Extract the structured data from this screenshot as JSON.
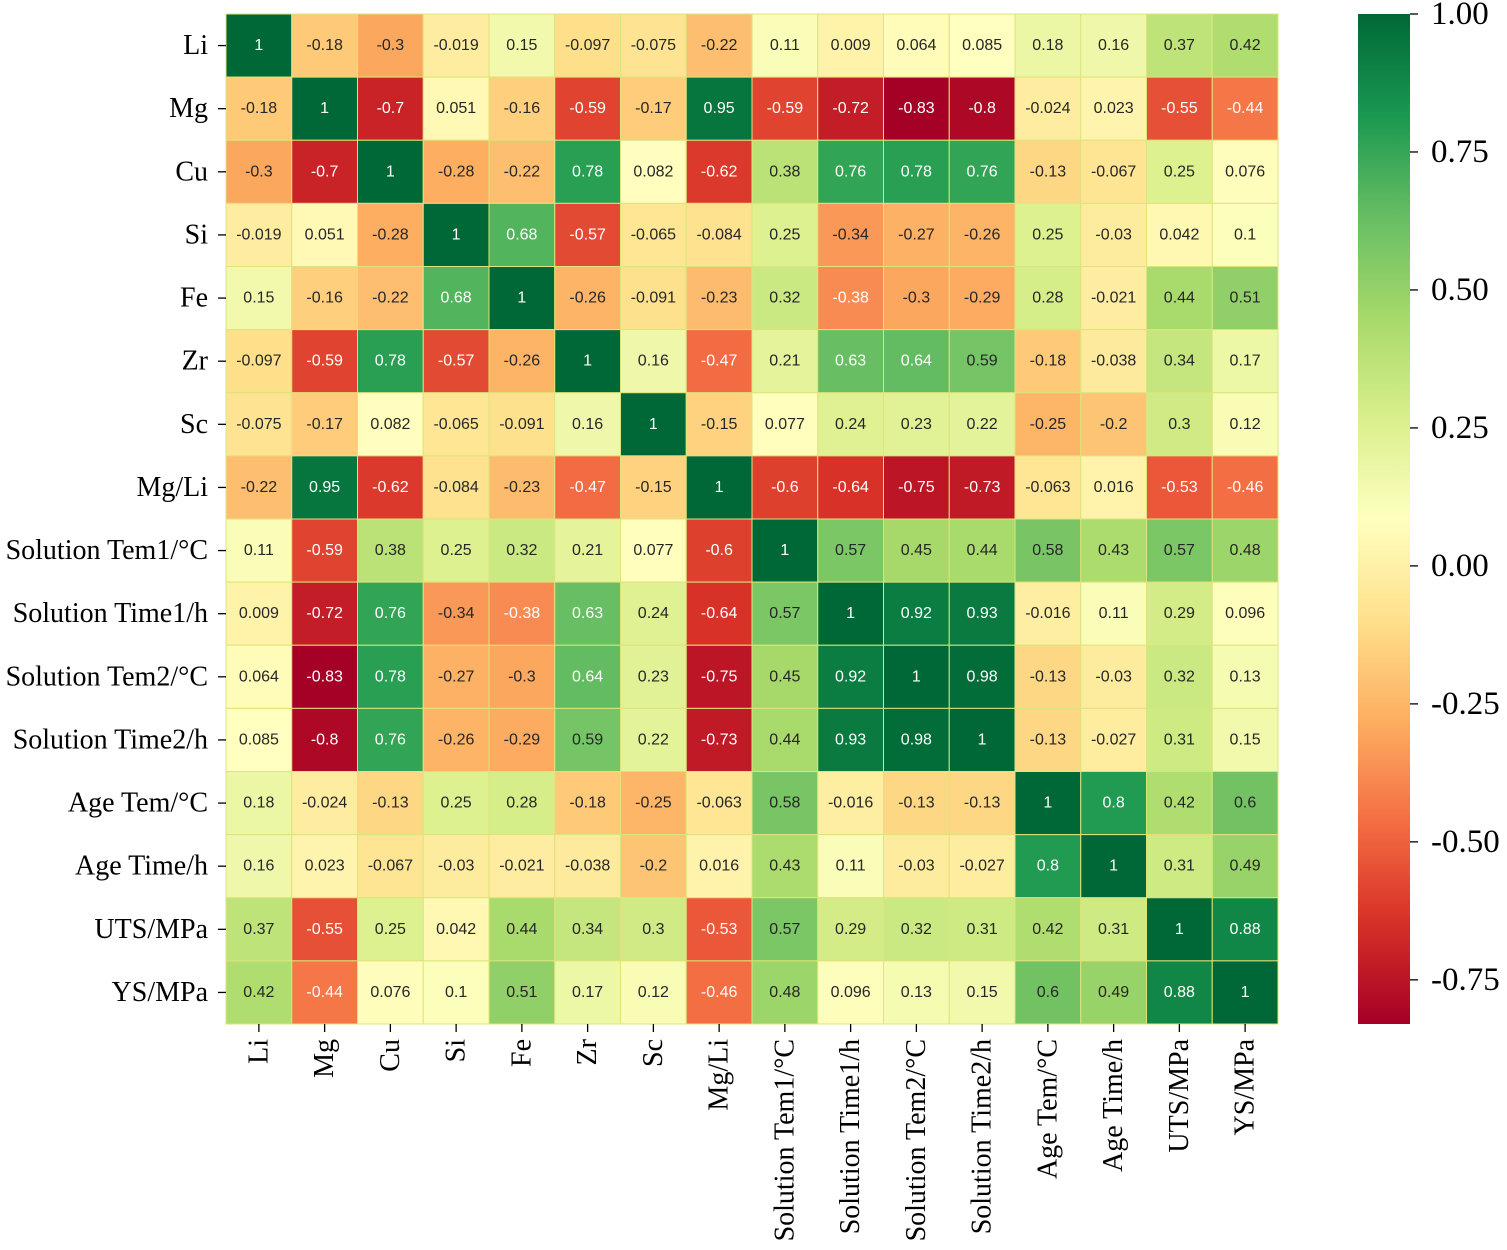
{
  "chart_data": {
    "type": "heatmap",
    "labels": [
      "Li",
      "Mg",
      "Cu",
      "Si",
      "Fe",
      "Zr",
      "Sc",
      "Mg/Li",
      "Solution Tem1/°C",
      "Solution Time1/h",
      "Solution Tem2/°C",
      "Solution Time2/h",
      "Age Tem/°C",
      "Age Time/h",
      "UTS/MPa",
      "YS/MPa"
    ],
    "values": [
      [
        1,
        -0.18,
        -0.3,
        -0.019,
        0.15,
        -0.097,
        -0.075,
        -0.22,
        0.11,
        0.009,
        0.064,
        0.085,
        0.18,
        0.16,
        0.37,
        0.42
      ],
      [
        -0.18,
        1,
        -0.7,
        0.051,
        -0.16,
        -0.59,
        -0.17,
        0.95,
        -0.59,
        -0.72,
        -0.83,
        -0.8,
        -0.024,
        0.023,
        -0.55,
        -0.44
      ],
      [
        -0.3,
        -0.7,
        1,
        -0.28,
        -0.22,
        0.78,
        0.082,
        -0.62,
        0.38,
        0.76,
        0.78,
        0.76,
        -0.13,
        -0.067,
        0.25,
        0.076
      ],
      [
        -0.019,
        0.051,
        -0.28,
        1,
        0.68,
        -0.57,
        -0.065,
        -0.084,
        0.25,
        -0.34,
        -0.27,
        -0.26,
        0.25,
        -0.03,
        0.042,
        0.1
      ],
      [
        0.15,
        -0.16,
        -0.22,
        0.68,
        1,
        -0.26,
        -0.091,
        -0.23,
        0.32,
        -0.38,
        -0.3,
        -0.29,
        0.28,
        -0.021,
        0.44,
        0.51
      ],
      [
        -0.097,
        -0.59,
        0.78,
        -0.57,
        -0.26,
        1,
        0.16,
        -0.47,
        0.21,
        0.63,
        0.64,
        0.59,
        -0.18,
        -0.038,
        0.34,
        0.17
      ],
      [
        -0.075,
        -0.17,
        0.082,
        -0.065,
        -0.091,
        0.16,
        1,
        -0.15,
        0.077,
        0.24,
        0.23,
        0.22,
        -0.25,
        -0.2,
        0.3,
        0.12
      ],
      [
        -0.22,
        0.95,
        -0.62,
        -0.084,
        -0.23,
        -0.47,
        -0.15,
        1,
        -0.6,
        -0.64,
        -0.75,
        -0.73,
        -0.063,
        0.016,
        -0.53,
        -0.46
      ],
      [
        0.11,
        -0.59,
        0.38,
        0.25,
        0.32,
        0.21,
        0.077,
        -0.6,
        1,
        0.57,
        0.45,
        0.44,
        0.58,
        0.43,
        0.57,
        0.48
      ],
      [
        0.009,
        -0.72,
        0.76,
        -0.34,
        -0.38,
        0.63,
        0.24,
        -0.64,
        0.57,
        1,
        0.92,
        0.93,
        -0.016,
        0.11,
        0.29,
        0.096
      ],
      [
        0.064,
        -0.83,
        0.78,
        -0.27,
        -0.3,
        0.64,
        0.23,
        -0.75,
        0.45,
        0.92,
        1,
        0.98,
        -0.13,
        -0.03,
        0.32,
        0.13
      ],
      [
        0.085,
        -0.8,
        0.76,
        -0.26,
        -0.29,
        0.59,
        0.22,
        -0.73,
        0.44,
        0.93,
        0.98,
        1,
        -0.13,
        -0.027,
        0.31,
        0.15
      ],
      [
        0.18,
        -0.024,
        -0.13,
        0.25,
        0.28,
        -0.18,
        -0.25,
        -0.063,
        0.58,
        -0.016,
        -0.13,
        -0.13,
        1,
        0.8,
        0.42,
        0.6
      ],
      [
        0.16,
        0.023,
        -0.067,
        -0.03,
        -0.021,
        -0.038,
        -0.2,
        0.016,
        0.43,
        0.11,
        -0.03,
        -0.027,
        0.8,
        1,
        0.31,
        0.49
      ],
      [
        0.37,
        -0.55,
        0.25,
        0.042,
        0.44,
        0.34,
        0.3,
        -0.53,
        0.57,
        0.29,
        0.32,
        0.31,
        0.42,
        0.31,
        1,
        0.88
      ],
      [
        0.42,
        -0.44,
        0.076,
        0.1,
        0.51,
        0.17,
        0.12,
        -0.46,
        0.48,
        0.096,
        0.13,
        0.15,
        0.6,
        0.49,
        0.88,
        1
      ]
    ],
    "color_range": [
      -0.83,
      1.0
    ],
    "colormap_stops": [
      "#a50026",
      "#d73027",
      "#f46d43",
      "#fdae61",
      "#fee08b",
      "#ffffbf",
      "#d9ef8b",
      "#a6d96a",
      "#66bd63",
      "#1a9850",
      "#006837"
    ],
    "colorbar_ticks": [
      {
        "value": 1.0,
        "label": "1.00"
      },
      {
        "value": 0.75,
        "label": "0.75"
      },
      {
        "value": 0.5,
        "label": "0.50"
      },
      {
        "value": 0.25,
        "label": "0.25"
      },
      {
        "value": 0.0,
        "label": "0.00"
      },
      {
        "value": -0.25,
        "label": "-0.25"
      },
      {
        "value": -0.5,
        "label": "-0.50"
      },
      {
        "value": -0.75,
        "label": "-0.75"
      }
    ]
  }
}
